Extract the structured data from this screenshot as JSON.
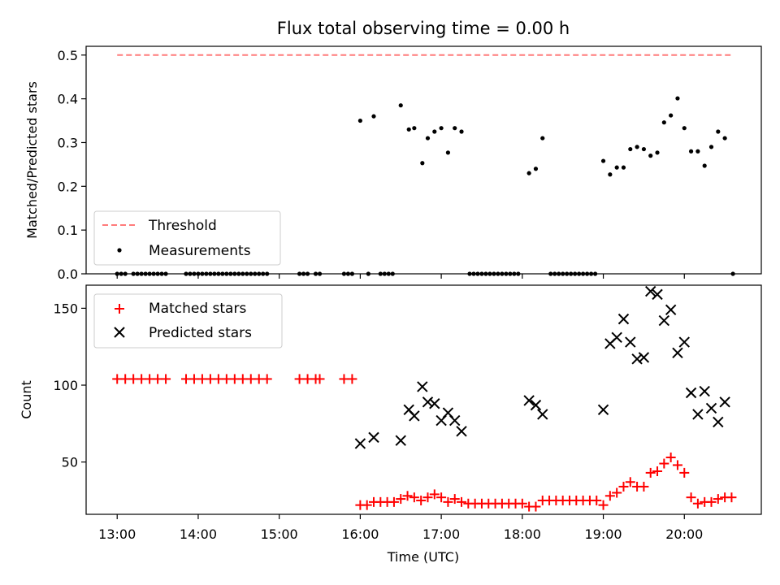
{
  "chart_data": [
    {
      "type": "scatter",
      "title": "Flux total observing time = 0.00 h",
      "ylabel": "Matched/Predicted stars",
      "xlabel": "",
      "xlim": [
        "12:37",
        "20:57"
      ],
      "ylim": [
        0,
        0.52
      ],
      "x_tick_labels": [
        "13:00",
        "14:00",
        "15:00",
        "16:00",
        "17:00",
        "18:00",
        "19:00",
        "20:00"
      ],
      "y_tick_labels": [
        "0.0",
        "0.1",
        "0.2",
        "0.3",
        "0.4",
        "0.5"
      ],
      "y_ticks": [
        0,
        0.1,
        0.2,
        0.3,
        0.4,
        0.5
      ],
      "grid": false,
      "legend_position": "lower-left",
      "threshold": {
        "name": "Threshold",
        "y": 0.5,
        "x_start": "13:00",
        "x_end": "20:36",
        "color": "#ff7b7b",
        "style": "dashed"
      },
      "series": [
        {
          "name": "Measurements",
          "marker": "dot",
          "color": "#000000",
          "points": [
            [
              "13:00",
              0
            ],
            [
              "13:03",
              0
            ],
            [
              "13:06",
              0
            ],
            [
              "13:12",
              0
            ],
            [
              "13:15",
              0
            ],
            [
              "13:18",
              0
            ],
            [
              "13:21",
              0
            ],
            [
              "13:24",
              0
            ],
            [
              "13:27",
              0
            ],
            [
              "13:30",
              0
            ],
            [
              "13:33",
              0
            ],
            [
              "13:36",
              0
            ],
            [
              "13:51",
              0
            ],
            [
              "13:54",
              0
            ],
            [
              "13:57",
              0
            ],
            [
              "14:00",
              0
            ],
            [
              "14:03",
              0
            ],
            [
              "14:06",
              0
            ],
            [
              "14:09",
              0
            ],
            [
              "14:12",
              0
            ],
            [
              "14:15",
              0
            ],
            [
              "14:18",
              0
            ],
            [
              "14:21",
              0
            ],
            [
              "14:24",
              0
            ],
            [
              "14:27",
              0
            ],
            [
              "14:30",
              0
            ],
            [
              "14:33",
              0
            ],
            [
              "14:36",
              0
            ],
            [
              "14:39",
              0
            ],
            [
              "14:42",
              0
            ],
            [
              "14:45",
              0
            ],
            [
              "14:48",
              0
            ],
            [
              "14:51",
              0
            ],
            [
              "15:15",
              0
            ],
            [
              "15:18",
              0
            ],
            [
              "15:21",
              0
            ],
            [
              "15:27",
              0
            ],
            [
              "15:30",
              0
            ],
            [
              "15:48",
              0
            ],
            [
              "15:51",
              0
            ],
            [
              "15:54",
              0
            ],
            [
              "16:06",
              0
            ],
            [
              "16:15",
              0
            ],
            [
              "16:18",
              0
            ],
            [
              "16:21",
              0
            ],
            [
              "16:24",
              0
            ],
            [
              "16:00",
              0.35
            ],
            [
              "16:10",
              0.36
            ],
            [
              "16:30",
              0.385
            ],
            [
              "16:36",
              0.33
            ],
            [
              "16:40",
              0.333
            ],
            [
              "16:46",
              0.253
            ],
            [
              "16:50",
              0.31
            ],
            [
              "16:55",
              0.325
            ],
            [
              "17:00",
              0.333
            ],
            [
              "17:05",
              0.277
            ],
            [
              "17:10",
              0.333
            ],
            [
              "17:15",
              0.325
            ],
            [
              "17:21",
              0
            ],
            [
              "17:24",
              0
            ],
            [
              "17:27",
              0
            ],
            [
              "17:30",
              0
            ],
            [
              "17:33",
              0
            ],
            [
              "17:36",
              0
            ],
            [
              "17:39",
              0
            ],
            [
              "17:42",
              0
            ],
            [
              "17:45",
              0
            ],
            [
              "17:48",
              0
            ],
            [
              "17:51",
              0
            ],
            [
              "17:54",
              0
            ],
            [
              "17:57",
              0
            ],
            [
              "18:05",
              0.23
            ],
            [
              "18:10",
              0.24
            ],
            [
              "18:15",
              0.31
            ],
            [
              "18:21",
              0
            ],
            [
              "18:24",
              0
            ],
            [
              "18:27",
              0
            ],
            [
              "18:30",
              0
            ],
            [
              "18:33",
              0
            ],
            [
              "18:36",
              0
            ],
            [
              "18:39",
              0
            ],
            [
              "18:42",
              0
            ],
            [
              "18:45",
              0
            ],
            [
              "18:48",
              0
            ],
            [
              "18:51",
              0
            ],
            [
              "18:54",
              0
            ],
            [
              "19:00",
              0.258
            ],
            [
              "19:05",
              0.227
            ],
            [
              "19:10",
              0.243
            ],
            [
              "19:15",
              0.243
            ],
            [
              "19:20",
              0.285
            ],
            [
              "19:25",
              0.29
            ],
            [
              "19:30",
              0.285
            ],
            [
              "19:35",
              0.27
            ],
            [
              "19:40",
              0.277
            ],
            [
              "19:45",
              0.346
            ],
            [
              "19:50",
              0.362
            ],
            [
              "19:55",
              0.401
            ],
            [
              "20:00",
              0.333
            ],
            [
              "20:05",
              0.28
            ],
            [
              "20:10",
              0.28
            ],
            [
              "20:15",
              0.247
            ],
            [
              "20:20",
              0.29
            ],
            [
              "20:25",
              0.325
            ],
            [
              "20:30",
              0.31
            ],
            [
              "20:36",
              0
            ]
          ]
        }
      ]
    },
    {
      "type": "scatter",
      "title": "",
      "ylabel": "Count",
      "xlabel": "Time (UTC)",
      "xlim": [
        "12:37",
        "20:57"
      ],
      "ylim": [
        16,
        165
      ],
      "x_tick_labels": [
        "13:00",
        "14:00",
        "15:00",
        "16:00",
        "17:00",
        "18:00",
        "19:00",
        "20:00"
      ],
      "y_tick_labels": [
        "50",
        "100",
        "150"
      ],
      "y_ticks": [
        50,
        100,
        150
      ],
      "grid": false,
      "legend_position": "upper-left",
      "series": [
        {
          "name": "Matched stars",
          "marker": "plus",
          "color": "#ff0000",
          "points": [
            [
              "13:00",
              104
            ],
            [
              "13:06",
              104
            ],
            [
              "13:12",
              104
            ],
            [
              "13:18",
              104
            ],
            [
              "13:24",
              104
            ],
            [
              "13:30",
              104
            ],
            [
              "13:36",
              104
            ],
            [
              "13:51",
              104
            ],
            [
              "13:57",
              104
            ],
            [
              "14:03",
              104
            ],
            [
              "14:09",
              104
            ],
            [
              "14:15",
              104
            ],
            [
              "14:21",
              104
            ],
            [
              "14:27",
              104
            ],
            [
              "14:33",
              104
            ],
            [
              "14:39",
              104
            ],
            [
              "14:45",
              104
            ],
            [
              "14:51",
              104
            ],
            [
              "15:15",
              104
            ],
            [
              "15:21",
              104
            ],
            [
              "15:27",
              104
            ],
            [
              "15:30",
              104
            ],
            [
              "15:48",
              104
            ],
            [
              "15:54",
              104
            ],
            [
              "16:00",
              22
            ],
            [
              "16:05",
              22
            ],
            [
              "16:10",
              24
            ],
            [
              "16:15",
              24
            ],
            [
              "16:20",
              24
            ],
            [
              "16:25",
              24
            ],
            [
              "16:30",
              26
            ],
            [
              "16:35",
              28
            ],
            [
              "16:40",
              27
            ],
            [
              "16:45",
              25
            ],
            [
              "16:50",
              27
            ],
            [
              "16:55",
              29
            ],
            [
              "17:00",
              27
            ],
            [
              "17:05",
              24
            ],
            [
              "17:10",
              26
            ],
            [
              "17:15",
              24
            ],
            [
              "17:20",
              23
            ],
            [
              "17:25",
              23
            ],
            [
              "17:30",
              23
            ],
            [
              "17:35",
              23
            ],
            [
              "17:40",
              23
            ],
            [
              "17:45",
              23
            ],
            [
              "17:50",
              23
            ],
            [
              "17:55",
              23
            ],
            [
              "18:00",
              23
            ],
            [
              "18:05",
              21
            ],
            [
              "18:10",
              21
            ],
            [
              "18:15",
              25
            ],
            [
              "18:20",
              25
            ],
            [
              "18:25",
              25
            ],
            [
              "18:30",
              25
            ],
            [
              "18:35",
              25
            ],
            [
              "18:40",
              25
            ],
            [
              "18:45",
              25
            ],
            [
              "18:50",
              25
            ],
            [
              "18:55",
              25
            ],
            [
              "19:00",
              22
            ],
            [
              "19:05",
              28
            ],
            [
              "19:10",
              30
            ],
            [
              "19:15",
              34
            ],
            [
              "19:20",
              37
            ],
            [
              "19:25",
              34
            ],
            [
              "19:30",
              34
            ],
            [
              "19:35",
              43
            ],
            [
              "19:40",
              44
            ],
            [
              "19:45",
              49
            ],
            [
              "19:50",
              53
            ],
            [
              "19:55",
              48
            ],
            [
              "20:00",
              43
            ],
            [
              "20:05",
              27
            ],
            [
              "20:10",
              23
            ],
            [
              "20:15",
              24
            ],
            [
              "20:20",
              24
            ],
            [
              "20:25",
              26
            ],
            [
              "20:30",
              27
            ],
            [
              "20:35",
              27
            ]
          ]
        },
        {
          "name": "Predicted stars",
          "marker": "x",
          "color": "#000000",
          "points": [
            [
              "16:00",
              62
            ],
            [
              "16:10",
              66
            ],
            [
              "16:30",
              64
            ],
            [
              "16:36",
              84
            ],
            [
              "16:40",
              80
            ],
            [
              "16:46",
              99
            ],
            [
              "16:50",
              89
            ],
            [
              "16:55",
              88
            ],
            [
              "17:00",
              77
            ],
            [
              "17:05",
              82
            ],
            [
              "17:10",
              77
            ],
            [
              "17:15",
              70
            ],
            [
              "18:05",
              90
            ],
            [
              "18:10",
              87
            ],
            [
              "18:15",
              81
            ],
            [
              "19:00",
              84
            ],
            [
              "19:05",
              127
            ],
            [
              "19:10",
              131
            ],
            [
              "19:15",
              143
            ],
            [
              "19:20",
              128
            ],
            [
              "19:25",
              117
            ],
            [
              "19:30",
              118
            ],
            [
              "19:35",
              161
            ],
            [
              "19:40",
              159
            ],
            [
              "19:45",
              142
            ],
            [
              "19:50",
              149
            ],
            [
              "19:55",
              121
            ],
            [
              "20:00",
              128
            ],
            [
              "20:05",
              95
            ],
            [
              "20:10",
              81
            ],
            [
              "20:15",
              96
            ],
            [
              "20:20",
              85
            ],
            [
              "20:25",
              76
            ],
            [
              "20:30",
              89
            ]
          ]
        }
      ]
    }
  ]
}
